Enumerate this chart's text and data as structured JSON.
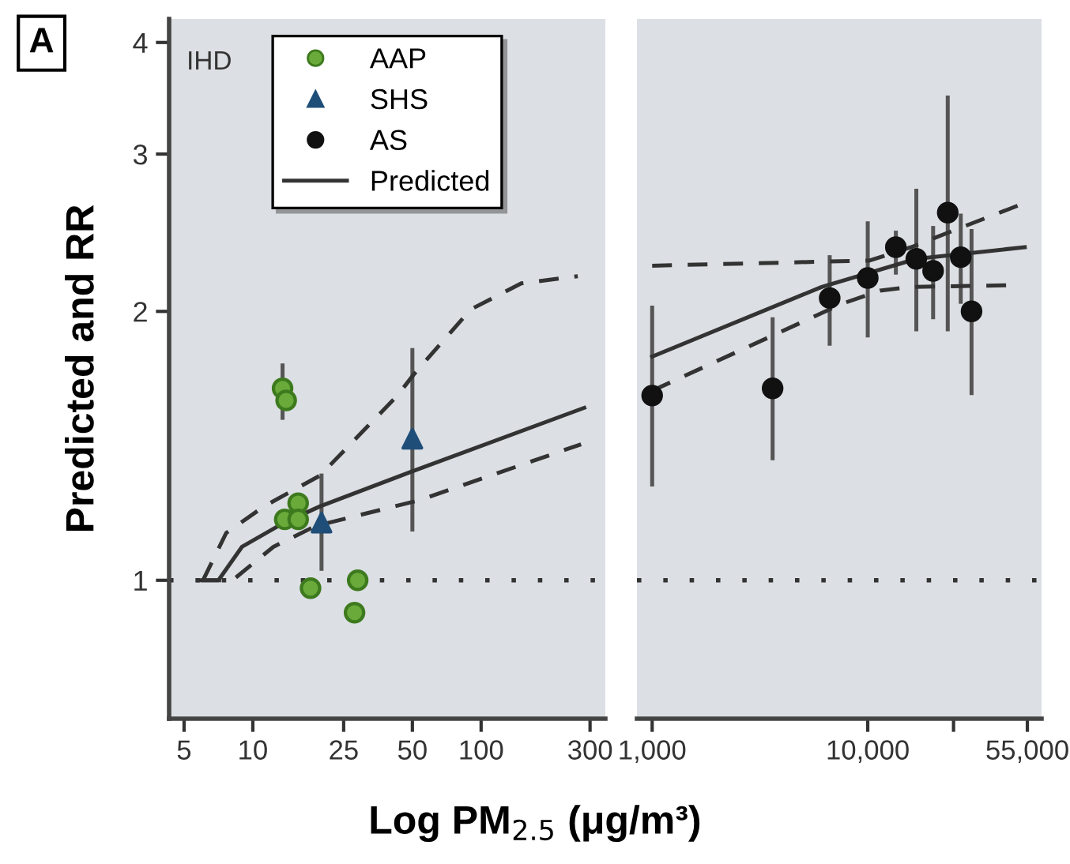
{
  "chart_data": [
    {
      "type": "scatter",
      "ylabel": "Predicted and RR",
      "xlabel": "Log PM$_{2.5}$ (μg/m³)",
      "annotations": [
        "A",
        "IHD"
      ],
      "log": "xy",
      "xlim": [
        4.3,
        350
      ],
      "ylim": [
        0.7,
        4.25
      ],
      "xticks": [
        5,
        10,
        25,
        50,
        100,
        300
      ],
      "yticks": [
        1,
        2,
        3,
        4
      ],
      "grid": false,
      "legend": "top",
      "ref_lines": [
        {
          "axis": "y",
          "value": 1,
          "line_style": "dotted",
          "color": "#333333"
        }
      ],
      "series": [
        {
          "name": "Predicted",
          "type": "line",
          "color": "#333333",
          "line_style": "solid",
          "marker": "none",
          "x": [
            5.75,
            7.07,
            8.96,
            13.7,
            19.7,
            48.3,
            283
          ],
          "values": [
            1.0,
            1.0,
            1.09,
            1.16,
            1.21,
            1.32,
            1.56
          ]
        },
        {
          "type": "line",
          "color": "#333333",
          "line_style": "dashed",
          "marker": "none",
          "x": [
            5.95,
            8.15,
            12.3,
            18.8,
            54,
            274
          ],
          "values": [
            1.0,
            1.0,
            1.09,
            1.15,
            1.23,
            1.42
          ]
        },
        {
          "type": "line",
          "color": "#333333",
          "line_style": "dashed",
          "marker": "none",
          "x": [
            6.05,
            7.65,
            11.2,
            19.7,
            43,
            50.7,
            90,
            150,
            265
          ],
          "values": [
            1.0,
            1.13,
            1.21,
            1.31,
            1.61,
            1.7,
            2.01,
            2.15,
            2.19
          ]
        },
        {
          "name": "AAP",
          "color": "#6aaa3a",
          "marker": "circle",
          "x": [
            13.5,
            14.0,
            15.8,
            13.8,
            15.8,
            17.9,
            28.8,
            27.9
          ],
          "values": [
            1.64,
            1.59,
            1.22,
            1.17,
            1.17,
            0.98,
            1.0,
            0.92
          ],
          "errors": [
            [
              1.52,
              1.74
            ],
            null,
            null,
            null,
            null,
            null,
            null,
            null
          ]
        },
        {
          "name": "SHS",
          "color": "#1f4e79",
          "marker": "triangle",
          "x": [
            20.0,
            50
          ],
          "values": [
            1.16,
            1.44
          ],
          "errors": [
            [
              1.03,
              1.31
            ],
            [
              1.14,
              1.81
            ]
          ]
        }
      ]
    },
    {
      "type": "scatter",
      "log": "xy",
      "xlim": [
        850,
        64000
      ],
      "ylim": [
        0.7,
        4.25
      ],
      "tick_labels": "x",
      "grid": false,
      "xticks": [
        {
          "value": 1000,
          "label": "1,000"
        },
        {
          "value": 10000,
          "label": "10,000"
        },
        {
          "value": 25000,
          "label": null
        },
        {
          "value": 55000,
          "label": "55,000"
        }
      ],
      "yticks": [
        1,
        2,
        3,
        4
      ],
      "ref_lines": [
        {
          "axis": "y",
          "value": 1,
          "line_style": "dotted",
          "color": "#333333"
        }
      ],
      "series": [
        {
          "type": "line",
          "color": "#333333",
          "line_style": "solid",
          "marker": "none",
          "x": [
            1000,
            6110,
            16800,
            53500
          ],
          "values": [
            1.78,
            2.13,
            2.29,
            2.36
          ]
        },
        {
          "type": "line",
          "color": "#333333",
          "line_style": "dashed",
          "marker": "none",
          "x": [
            1000,
            10200,
            15900,
            28000,
            52400
          ],
          "values": [
            2.25,
            2.28,
            2.36,
            2.49,
            2.64
          ]
        },
        {
          "type": "line",
          "color": "#333333",
          "line_style": "dashed",
          "marker": "none",
          "x": [
            1000,
            7610,
            11400,
            15900,
            46600
          ],
          "values": [
            1.63,
            2.04,
            2.11,
            2.13,
            2.14
          ]
        },
        {
          "name": "AS",
          "color": "#111111",
          "marker": "circle",
          "x": [
            1000,
            3620,
            6660,
            10000,
            13500,
            16800,
            20100,
            23500,
            27000,
            30300
          ],
          "values": [
            1.61,
            1.64,
            2.07,
            2.18,
            2.36,
            2.29,
            2.22,
            2.58,
            2.3,
            2.0
          ],
          "errors": [
            [
              1.28,
              2.02
            ],
            [
              1.37,
              1.96
            ],
            [
              1.84,
              2.3
            ],
            [
              1.88,
              2.51
            ],
            [
              2.21,
              2.45
            ],
            [
              1.91,
              2.73
            ],
            [
              1.97,
              2.48
            ],
            [
              1.91,
              3.47
            ],
            [
              2.05,
              2.56
            ],
            [
              1.62,
              2.46
            ]
          ]
        }
      ]
    }
  ]
}
